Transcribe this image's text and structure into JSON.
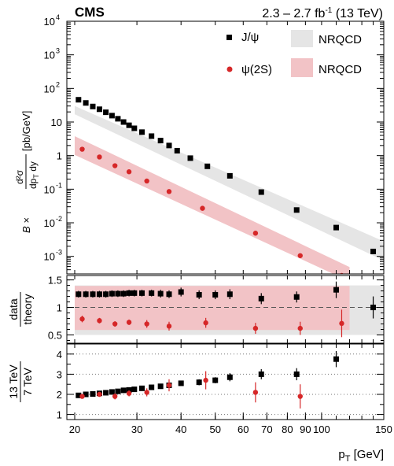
{
  "chart_data": [
    {
      "panel": "cross-section",
      "type": "scatter",
      "experiment": "CMS",
      "lumi": "2.3 – 2.7 fb",
      "lumi_exp": "-1",
      "energy": "(13 TeV)",
      "x_scale": "log",
      "y_scale": "log",
      "xlim": [
        19,
        150
      ],
      "ylim": [
        0.0003,
        10000
      ],
      "ylabel": {
        "prefix": "B ×",
        "num": "d²σ",
        "den": "dp",
        "den_sub": "T",
        "den_tail": " dy",
        "unit": "[pb/GeV]"
      },
      "yticks": [
        {
          "v": 0.001,
          "label": "10",
          "exp": "-3"
        },
        {
          "v": 0.01,
          "label": "10",
          "exp": "-2"
        },
        {
          "v": 0.1,
          "label": "10",
          "exp": "-1"
        },
        {
          "v": 1,
          "label": "1",
          "exp": ""
        },
        {
          "v": 10,
          "label": "10",
          "exp": ""
        },
        {
          "v": 100,
          "label": "10",
          "exp": "2"
        },
        {
          "v": 1000,
          "label": "10",
          "exp": "3"
        },
        {
          "v": 10000,
          "label": "10",
          "exp": "4"
        }
      ],
      "legend": {
        "jpsi_label": "J/ψ",
        "psi2s_label": "ψ(2S)",
        "band_label_1": "NRQCD",
        "band_label_2": "NRQCD"
      },
      "series": [
        {
          "name": "J/ψ",
          "color": "#000000",
          "marker": "square",
          "x": [
            20.5,
            21.5,
            22.5,
            23.5,
            24.5,
            25.5,
            26.5,
            27.5,
            28.5,
            29.5,
            31,
            33,
            35,
            37,
            39,
            42.5,
            47.5,
            55,
            67.5,
            85,
            110,
            140
          ],
          "y": [
            46,
            37,
            29,
            24,
            19.5,
            15.5,
            12.5,
            10,
            8,
            6.5,
            5.0,
            3.8,
            2.8,
            2.0,
            1.4,
            0.84,
            0.48,
            0.25,
            0.082,
            0.024,
            0.0072,
            0.0014
          ]
        },
        {
          "name": "ψ(2S)",
          "color": "#d62728",
          "marker": "circle",
          "x": [
            21,
            23.5,
            26,
            28.5,
            32,
            37,
            46,
            65,
            87,
            114
          ],
          "y": [
            1.55,
            0.91,
            0.5,
            0.33,
            0.175,
            0.085,
            0.027,
            0.0049,
            0.00105,
            0.00027
          ]
        }
      ],
      "bands": [
        {
          "name": "J/ψ NRQCD",
          "color": "#e5e5e5",
          "x": [
            20,
            150
          ],
          "low": [
            17,
            0.00075
          ],
          "high": [
            30,
            0.0028
          ]
        },
        {
          "name": "ψ(2S) NRQCD",
          "color": "#f2c3c6",
          "x": [
            20,
            120
          ],
          "low": [
            1.05,
            0.00018
          ],
          "high": [
            3.8,
            0.00048
          ]
        }
      ]
    },
    {
      "panel": "data-over-theory",
      "type": "scatter",
      "x_scale": "log",
      "ylim": [
        0.35,
        1.58
      ],
      "ylabel_top": "data",
      "ylabel_bottom": "theory",
      "yticks": [
        {
          "v": 0.5,
          "label": "0.5"
        },
        {
          "v": 1,
          "label": "1"
        },
        {
          "v": 1.5,
          "label": "1.5"
        }
      ],
      "reference_line": 1,
      "bands": [
        {
          "name": "J/ψ NRQCD unc.",
          "color": "#e5e5e5",
          "x": [
            20,
            150
          ],
          "low": [
            0.5,
            0.5
          ],
          "high": [
            1.4,
            1.4
          ]
        },
        {
          "name": "ψ(2S) NRQCD unc.",
          "color": "#f2c3c6",
          "x": [
            20,
            120
          ],
          "low": [
            0.59,
            0.59
          ],
          "high": [
            1.39,
            1.39
          ]
        }
      ],
      "series": [
        {
          "name": "J/ψ",
          "color": "#000000",
          "marker": "square",
          "x": [
            20.5,
            21.5,
            22.5,
            23.5,
            24.5,
            25.5,
            26.5,
            27.5,
            28.5,
            29.5,
            31,
            33,
            35,
            37,
            40,
            45,
            50,
            55,
            67.5,
            85,
            110,
            140
          ],
          "y": [
            1.24,
            1.24,
            1.24,
            1.24,
            1.24,
            1.25,
            1.25,
            1.25,
            1.26,
            1.26,
            1.26,
            1.26,
            1.25,
            1.24,
            1.28,
            1.23,
            1.23,
            1.24,
            1.16,
            1.19,
            1.32,
            1.0
          ],
          "err": [
            0.06,
            0.06,
            0.06,
            0.06,
            0.06,
            0.06,
            0.06,
            0.06,
            0.06,
            0.06,
            0.06,
            0.06,
            0.07,
            0.07,
            0.08,
            0.08,
            0.08,
            0.09,
            0.1,
            0.1,
            0.15,
            0.2
          ]
        },
        {
          "name": "ψ(2S)",
          "color": "#d62728",
          "marker": "circle",
          "x": [
            21,
            23.5,
            26,
            28.5,
            32,
            37,
            47,
            65,
            87,
            114
          ],
          "y": [
            0.79,
            0.76,
            0.7,
            0.73,
            0.7,
            0.66,
            0.72,
            0.62,
            0.62,
            0.71
          ],
          "err": [
            0.06,
            0.05,
            0.05,
            0.05,
            0.07,
            0.08,
            0.09,
            0.1,
            0.12,
            0.25
          ]
        }
      ]
    },
    {
      "panel": "energy-ratio",
      "type": "scatter",
      "x_scale": "log",
      "ylim": [
        0.75,
        4.5
      ],
      "ylabel_top": "13 TeV",
      "ylabel_bottom": "7 TeV",
      "yticks": [
        {
          "v": 1,
          "label": "1"
        },
        {
          "v": 2,
          "label": "2"
        },
        {
          "v": 3,
          "label": "3"
        },
        {
          "v": 4,
          "label": "4"
        }
      ],
      "xticks": [
        {
          "v": 20,
          "label": "20"
        },
        {
          "v": 30,
          "label": "30"
        },
        {
          "v": 40,
          "label": "40"
        },
        {
          "v": 50,
          "label": "50"
        },
        {
          "v": 60,
          "label": "60"
        },
        {
          "v": 70,
          "label": "70"
        },
        {
          "v": 80,
          "label": "80"
        },
        {
          "v": 90,
          "label": "90"
        },
        {
          "v": 100,
          "label": "100"
        },
        {
          "v": 150,
          "label": "150"
        }
      ],
      "xlabel": "p",
      "xlabel_sub": "T",
      "xlabel_unit": "[GeV]",
      "series": [
        {
          "name": "J/ψ",
          "color": "#000000",
          "marker": "square",
          "x": [
            20.5,
            21.5,
            22.5,
            23.5,
            24.5,
            25.5,
            26.5,
            27.5,
            28.5,
            29.5,
            31,
            33,
            35,
            37,
            40,
            45,
            50,
            55,
            67.5,
            85,
            110
          ],
          "y": [
            1.95,
            2.0,
            2.02,
            2.05,
            2.08,
            2.12,
            2.15,
            2.2,
            2.22,
            2.25,
            2.3,
            2.35,
            2.4,
            2.45,
            2.55,
            2.6,
            2.7,
            2.85,
            3.0,
            3.0,
            3.75
          ],
          "err": [
            0.05,
            0.05,
            0.05,
            0.05,
            0.05,
            0.05,
            0.06,
            0.06,
            0.06,
            0.07,
            0.08,
            0.09,
            0.1,
            0.1,
            0.12,
            0.15,
            0.15,
            0.2,
            0.25,
            0.3,
            0.4
          ]
        },
        {
          "name": "ψ(2S)",
          "color": "#d62728",
          "marker": "circle",
          "x": [
            21,
            23.5,
            26,
            28.5,
            32,
            37,
            47,
            65,
            87
          ],
          "y": [
            1.9,
            2.0,
            1.9,
            2.05,
            2.1,
            2.45,
            2.7,
            2.1,
            1.9
          ],
          "err": [
            0.1,
            0.12,
            0.15,
            0.15,
            0.2,
            0.3,
            0.45,
            0.5,
            0.6
          ]
        }
      ]
    }
  ]
}
